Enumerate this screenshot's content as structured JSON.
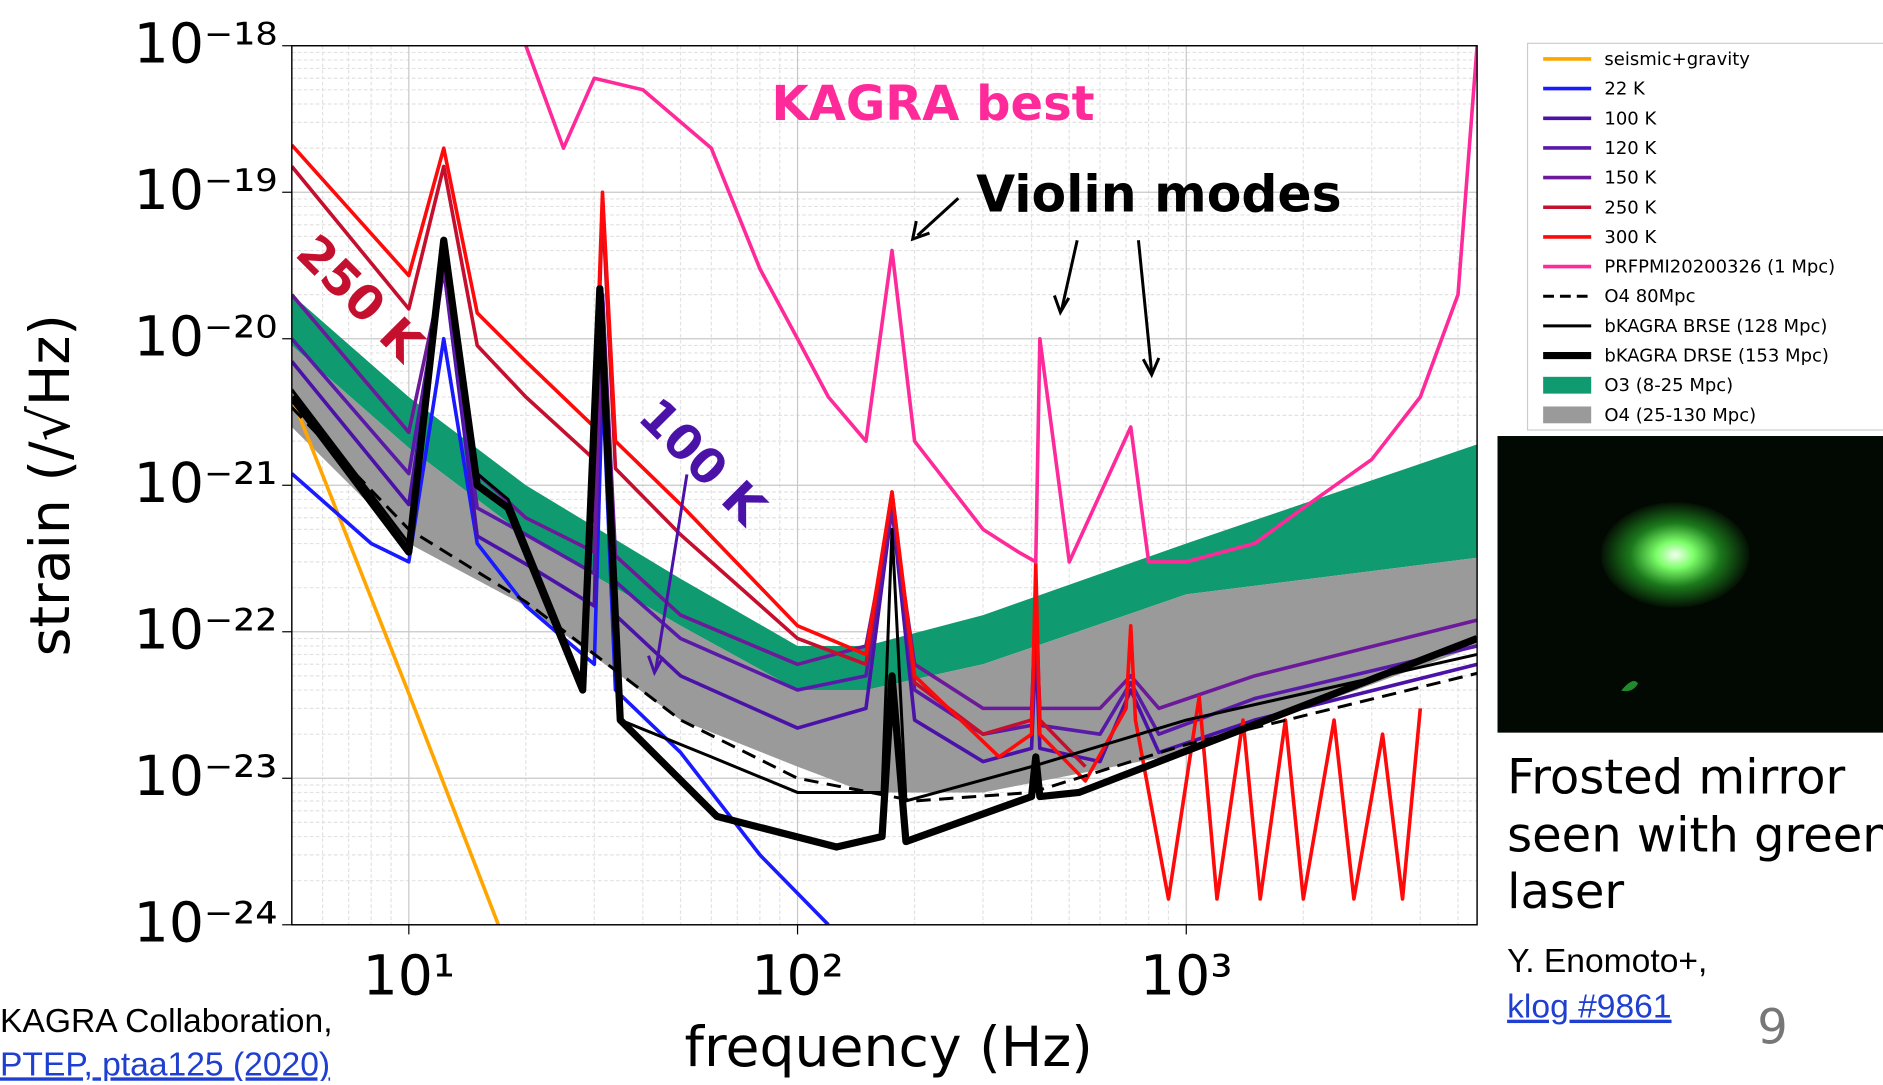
{
  "chart_data": {
    "type": "line",
    "xlabel": "frequency (Hz)",
    "ylabel": "strain (/√Hz)",
    "xscale": "log",
    "yscale": "log",
    "grid": true,
    "legend": "outside right",
    "xlim": [
      5,
      5600
    ],
    "ylim": [
      1e-24,
      1e-18
    ],
    "xticks": [
      {
        "value": 10,
        "label": "10¹"
      },
      {
        "value": 100,
        "label": "10²"
      },
      {
        "value": 1000,
        "label": "10³"
      }
    ],
    "yticks": [
      {
        "value": 1e-18,
        "label": "10⁻¹⁸"
      },
      {
        "value": 1e-19,
        "label": "10⁻¹⁹"
      },
      {
        "value": 1e-20,
        "label": "10⁻²⁰"
      },
      {
        "value": 1e-21,
        "label": "10⁻²¹"
      },
      {
        "value": 1e-22,
        "label": "10⁻²²"
      },
      {
        "value": 1e-23,
        "label": "10⁻²³"
      },
      {
        "value": 1e-24,
        "label": "10⁻²⁴"
      }
    ],
    "annotations": [
      "KAGRA best",
      "Violin modes",
      "250 K",
      "100 K"
    ],
    "series": [
      {
        "name": "seismic+gravity",
        "color": "#ffa500",
        "linewidth": 3,
        "x": [
          5,
          10,
          17
        ],
        "values": [
          4e-21,
          3.8e-23,
          1e-24
        ]
      },
      {
        "name": "22 K",
        "color": "#1a1aff",
        "linewidth": 3,
        "x": [
          5,
          8,
          10,
          12.3,
          15,
          20,
          30,
          31.5,
          34,
          50,
          80,
          120
        ],
        "values": [
          1.2e-21,
          4e-22,
          3e-22,
          1e-20,
          4e-22,
          1.5e-22,
          6e-23,
          5e-21,
          4e-23,
          1.5e-23,
          3e-24,
          1e-24
        ]
      },
      {
        "name": "100 K",
        "color": "#4b12a8",
        "linewidth": 3,
        "x": [
          5,
          10,
          12.3,
          15,
          20,
          30,
          31.5,
          34,
          50,
          100,
          150,
          175,
          200,
          300,
          400,
          410,
          420,
          600,
          720,
          850,
          1500,
          5600
        ],
        "values": [
          7e-21,
          7.4e-22,
          3e-20,
          4.5e-22,
          2.9e-22,
          1.5e-22,
          2e-20,
          1.3e-22,
          5e-23,
          2.2e-23,
          3e-23,
          7e-22,
          2.5e-23,
          1.3e-23,
          1.6e-23,
          8e-23,
          1.6e-23,
          1.3e-23,
          4e-23,
          1.5e-23,
          2.5e-23,
          6e-23
        ]
      },
      {
        "name": "120 K",
        "color": "#5a1aa8",
        "linewidth": 3,
        "x": [
          5,
          10,
          12.3,
          15,
          20,
          30,
          31.5,
          34,
          50,
          100,
          150,
          175,
          200,
          300,
          400,
          410,
          420,
          600,
          720,
          850,
          1500,
          5600
        ],
        "values": [
          1e-20,
          1.2e-21,
          3e-20,
          7e-22,
          4.6e-22,
          2.5e-22,
          2e-20,
          2.2e-22,
          9e-23,
          4e-23,
          5e-23,
          7e-22,
          4e-23,
          2e-23,
          2.3e-23,
          1e-22,
          2.3e-23,
          2e-23,
          4.5e-23,
          2e-23,
          3.5e-23,
          8e-23
        ]
      },
      {
        "name": "150 K",
        "color": "#6c1a9a",
        "linewidth": 3,
        "x": [
          5,
          10,
          12.3,
          15,
          20,
          30,
          31.5,
          34,
          50,
          100,
          150,
          175,
          200,
          300,
          400,
          410,
          420,
          600,
          720,
          850,
          1500,
          5600
        ],
        "values": [
          2e-20,
          2.3e-21,
          3e-20,
          1.2e-21,
          6e-22,
          3.5e-22,
          2e-20,
          3.3e-22,
          1.3e-22,
          6e-23,
          8e-23,
          7e-22,
          6e-23,
          3e-23,
          3e-23,
          1.2e-22,
          3e-23,
          3e-23,
          5e-23,
          3e-23,
          5e-23,
          1.2e-22
        ]
      },
      {
        "name": "250 K",
        "color": "#c4102e",
        "linewidth": 3,
        "x": [
          5,
          10,
          12.3,
          15,
          20,
          30,
          31.5,
          34,
          50,
          100,
          150,
          175,
          200,
          300,
          400,
          410,
          420,
          550
        ],
        "values": [
          1.5e-19,
          1.6e-20,
          1.5e-19,
          9e-21,
          4e-21,
          1.5e-21,
          8e-20,
          1.3e-21,
          4.6e-22,
          9e-23,
          6e-23,
          9e-22,
          4.5e-23,
          2e-23,
          2.5e-23,
          2e-22,
          2.5e-23,
          1.2e-23
        ]
      },
      {
        "name": "300 K",
        "color": "#ff0a0a",
        "linewidth": 3,
        "x": [
          5,
          10,
          12.3,
          15,
          20,
          30,
          31.5,
          34,
          50,
          100,
          150,
          175,
          200,
          330,
          400,
          410,
          420,
          550,
          700,
          720,
          740,
          900,
          1080,
          1200,
          1400,
          1550,
          1800,
          2000,
          2400,
          2700,
          3200,
          3600,
          4000
        ],
        "values": [
          2.1e-19,
          2.7e-20,
          2e-19,
          1.5e-20,
          7e-21,
          2.5e-21,
          1e-19,
          2e-21,
          7.4e-22,
          1.1e-22,
          7e-23,
          9e-22,
          5e-23,
          1.4e-23,
          2e-23,
          2.9e-22,
          2e-23,
          9.6e-24,
          3e-23,
          1.1e-22,
          2.5e-23,
          1.5e-24,
          3.6e-23,
          1.5e-24,
          2.5e-23,
          1.5e-24,
          2.5e-23,
          1.5e-24,
          2.5e-23,
          1.5e-24,
          2e-23,
          1.5e-24,
          3e-23
        ]
      },
      {
        "name": "PRFPMI20200326 (1 Mpc)",
        "color": "#ff2a9a",
        "linewidth": 3,
        "x": [
          20,
          25,
          30,
          40,
          60,
          80,
          100,
          120,
          150,
          175,
          200,
          300,
          370,
          410,
          420,
          500,
          720,
          800,
          1000,
          1500,
          2000,
          3000,
          4000,
          5000,
          5600
        ],
        "values": [
          1e-18,
          2e-19,
          6e-19,
          5e-19,
          2e-19,
          3e-20,
          1e-20,
          4e-21,
          2e-21,
          4e-20,
          2e-21,
          5e-22,
          3.5e-22,
          3e-22,
          1e-20,
          3e-22,
          2.5e-21,
          3e-22,
          3e-22,
          4e-22,
          7e-22,
          1.5e-21,
          4e-21,
          2e-20,
          1e-18
        ]
      },
      {
        "name": "O4 80Mpc",
        "color": "#000000",
        "linewidth": 2.5,
        "dashed": true,
        "x": [
          5,
          10,
          20,
          50,
          100,
          200,
          400,
          1000,
          5600
        ],
        "values": [
          3.4e-21,
          5e-22,
          1.6e-22,
          2.5e-23,
          1e-23,
          7e-24,
          8e-24,
          1.7e-23,
          5.2e-23
        ]
      },
      {
        "name": "bKAGRA BRSE (128 Mpc)",
        "color": "#000000",
        "linewidth": 2.5,
        "x": [
          5,
          10,
          12.3,
          15,
          18,
          28,
          31,
          35,
          60,
          100,
          165,
          175,
          190,
          400,
          1000,
          5600
        ],
        "values": [
          4.5e-21,
          4e-22,
          3.5e-20,
          1.2e-21,
          8e-22,
          4.5e-23,
          2e-20,
          2.5e-23,
          1.4e-23,
          8e-24,
          8e-24,
          5e-22,
          7e-24,
          1.2e-23,
          2.5e-23,
          7e-23
        ]
      },
      {
        "name": "bKAGRA DRSE (153 Mpc)",
        "color": "#000000",
        "linewidth": 6,
        "x": [
          5,
          10,
          12.3,
          15,
          18,
          28,
          31,
          35,
          62,
          126,
          165,
          175,
          190,
          400,
          410,
          420,
          530,
          5600
        ],
        "values": [
          4e-21,
          3.5e-22,
          4.7e-20,
          1e-21,
          7e-22,
          4e-23,
          2.2e-20,
          2.5e-23,
          5.5e-24,
          3.4e-24,
          4e-24,
          5e-23,
          3.7e-24,
          7.5e-24,
          1.4e-23,
          7.5e-24,
          8e-24,
          9e-23
        ]
      },
      {
        "name": "O3 (8-25 Mpc)",
        "color": "#109a70",
        "x": [
          5,
          10,
          20,
          50,
          100,
          150,
          300,
          1000,
          5600
        ],
        "lower": [
          9e-21,
          1.8e-21,
          4.5e-22,
          1.1e-22,
          4e-23,
          4e-23,
          6e-23,
          1.8e-22,
          3.2e-22
        ],
        "upper": [
          2e-20,
          4e-21,
          1e-21,
          2.3e-22,
          8e-23,
          8e-23,
          1.3e-22,
          4e-22,
          1.9e-21
        ]
      },
      {
        "name": "O4 (25-130 Mpc)",
        "color": "#9a9a9a",
        "x": [
          5,
          10,
          20,
          50,
          100,
          150,
          300,
          1000,
          5600
        ],
        "lower": [
          2.5e-21,
          4e-22,
          1.5e-22,
          2.5e-23,
          1.2e-23,
          8e-24,
          8e-24,
          1.5e-23,
          8e-23
        ],
        "upper": [
          9e-21,
          1.8e-21,
          4.5e-22,
          1.1e-22,
          4e-23,
          4e-23,
          6e-23,
          1.8e-22,
          3.2e-22
        ]
      }
    ]
  },
  "caption": [
    "Frosted mirror",
    "seen with green",
    "laser"
  ],
  "credit": "Y. Enomoto+,",
  "credit_link": "klog #9861",
  "reference": "KAGRA Collaboration,",
  "reference_link": "PTEP, ptaa125 (2020)",
  "page_number": "9"
}
